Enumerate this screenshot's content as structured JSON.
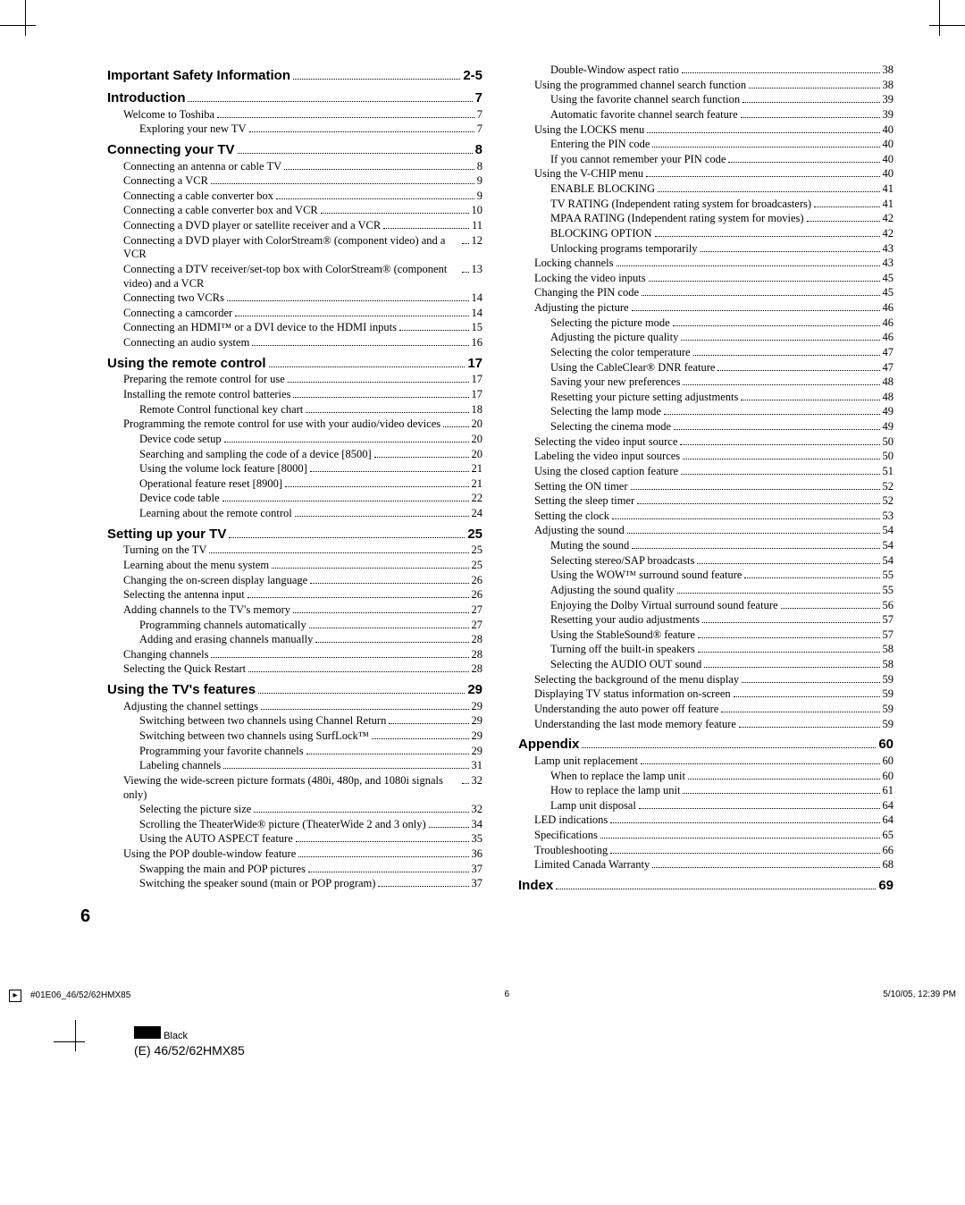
{
  "meta": {
    "page_number_display": "6",
    "job_code": "#01E06_46/52/62HMX85",
    "sheet_number": "6",
    "timestamp": "5/10/05, 12:39 PM",
    "imposition_label": "(E) 46/52/62HMX85",
    "color_name": "Black"
  },
  "left_column": [
    {
      "level": "section",
      "label": "Important Safety Information",
      "page": "2-5"
    },
    {
      "level": "section",
      "label": "Introduction",
      "page": "7"
    },
    {
      "level": 1,
      "label": "Welcome to Toshiba",
      "page": "7"
    },
    {
      "level": 2,
      "label": "Exploring your new TV",
      "page": "7"
    },
    {
      "level": "section",
      "label": "Connecting your TV",
      "page": "8"
    },
    {
      "level": 1,
      "label": "Connecting an antenna or cable TV",
      "page": "8"
    },
    {
      "level": 1,
      "label": "Connecting a VCR",
      "page": "9"
    },
    {
      "level": 1,
      "label": "Connecting a cable converter box",
      "page": "9"
    },
    {
      "level": 1,
      "label": "Connecting a cable converter box and VCR",
      "page": "10"
    },
    {
      "level": 1,
      "label": "Connecting a DVD player or satellite receiver and a VCR",
      "page": "11"
    },
    {
      "level": 1,
      "label": "Connecting a DVD player with ColorStream® (component video) and a VCR",
      "page": "12"
    },
    {
      "level": 1,
      "label": "Connecting a DTV receiver/set-top box with ColorStream® (component video) and a VCR",
      "page": "13"
    },
    {
      "level": 1,
      "label": "Connecting two VCRs",
      "page": "14"
    },
    {
      "level": 1,
      "label": "Connecting a camcorder",
      "page": "14"
    },
    {
      "level": 1,
      "label": "Connecting an HDMI™ or a DVI device to the HDMI inputs",
      "page": "15"
    },
    {
      "level": 1,
      "label": "Connecting an audio system",
      "page": "16"
    },
    {
      "level": "section",
      "label": "Using the remote control",
      "page": "17"
    },
    {
      "level": 1,
      "label": "Preparing the remote control for use",
      "page": "17"
    },
    {
      "level": 1,
      "label": "Installing the remote control batteries",
      "page": "17"
    },
    {
      "level": 2,
      "label": "Remote Control functional key chart",
      "page": "18"
    },
    {
      "level": 1,
      "label": "Programming the remote control for use with your audio/video devices",
      "page": "20"
    },
    {
      "level": 2,
      "label": "Device code setup",
      "page": "20"
    },
    {
      "level": 2,
      "label": "Searching and sampling the code of a device [8500]",
      "page": "20"
    },
    {
      "level": 2,
      "label": "Using the volume lock feature [8000]",
      "page": "21"
    },
    {
      "level": 2,
      "label": "Operational feature reset [8900]",
      "page": "21"
    },
    {
      "level": 2,
      "label": "Device code table",
      "page": "22"
    },
    {
      "level": 2,
      "label": "Learning about the remote control",
      "page": "24"
    },
    {
      "level": "section",
      "label": "Setting up your TV",
      "page": "25"
    },
    {
      "level": 1,
      "label": "Turning on the TV",
      "page": "25"
    },
    {
      "level": 1,
      "label": "Learning about the menu system",
      "page": "25"
    },
    {
      "level": 1,
      "label": "Changing the on-screen display language",
      "page": "26"
    },
    {
      "level": 1,
      "label": "Selecting the antenna input",
      "page": "26"
    },
    {
      "level": 1,
      "label": "Adding channels to the TV's memory",
      "page": "27"
    },
    {
      "level": 2,
      "label": "Programming channels automatically",
      "page": "27"
    },
    {
      "level": 2,
      "label": "Adding and erasing channels manually",
      "page": "28"
    },
    {
      "level": 1,
      "label": "Changing channels",
      "page": "28"
    },
    {
      "level": 1,
      "label": "Selecting the Quick Restart",
      "page": "28"
    },
    {
      "level": "section",
      "label": "Using the TV's features",
      "page": "29"
    },
    {
      "level": 1,
      "label": "Adjusting the channel settings",
      "page": "29"
    },
    {
      "level": 2,
      "label": "Switching between two channels using Channel Return",
      "page": "29"
    },
    {
      "level": 2,
      "label": "Switching between two channels using SurfLock™",
      "page": "29"
    },
    {
      "level": 2,
      "label": "Programming your favorite channels",
      "page": "29"
    },
    {
      "level": 2,
      "label": "Labeling channels",
      "page": "31"
    },
    {
      "level": 1,
      "label": "Viewing the wide-screen picture formats (480i, 480p, and 1080i signals only)",
      "page": "32"
    },
    {
      "level": 2,
      "label": "Selecting the picture size",
      "page": "32"
    },
    {
      "level": 2,
      "label": "Scrolling the TheaterWide® picture (TheaterWide 2 and 3 only)",
      "page": "34"
    },
    {
      "level": 2,
      "label": "Using the AUTO ASPECT feature",
      "page": "35"
    },
    {
      "level": 1,
      "label": "Using the POP double-window feature",
      "page": "36"
    },
    {
      "level": 2,
      "label": "Swapping the main and POP pictures",
      "page": "37"
    },
    {
      "level": 2,
      "label": "Switching the speaker sound (main or POP program)",
      "page": "37"
    }
  ],
  "right_column": [
    {
      "level": 2,
      "label": "Double-Window aspect ratio",
      "page": "38"
    },
    {
      "level": 1,
      "label": "Using the programmed channel search function",
      "page": "38"
    },
    {
      "level": 2,
      "label": "Using the favorite channel search function",
      "page": "39"
    },
    {
      "level": 2,
      "label": "Automatic favorite channel search feature",
      "page": "39"
    },
    {
      "level": 1,
      "label": "Using the LOCKS menu",
      "page": "40"
    },
    {
      "level": 2,
      "label": "Entering the PIN code",
      "page": "40"
    },
    {
      "level": 2,
      "label": "If you cannot remember your PIN code",
      "page": "40"
    },
    {
      "level": 1,
      "label": "Using the V-CHIP menu",
      "page": "40"
    },
    {
      "level": 2,
      "label": "ENABLE BLOCKING",
      "page": "41"
    },
    {
      "level": 2,
      "label": "TV RATING (Independent rating system for broadcasters)",
      "page": "41"
    },
    {
      "level": 2,
      "label": "MPAA RATING (Independent rating system for movies)",
      "page": "42"
    },
    {
      "level": 2,
      "label": "BLOCKING OPTION",
      "page": "42"
    },
    {
      "level": 2,
      "label": "Unlocking programs temporarily",
      "page": "43"
    },
    {
      "level": 1,
      "label": "Locking channels",
      "page": "43"
    },
    {
      "level": 1,
      "label": "Locking the video inputs",
      "page": "45"
    },
    {
      "level": 1,
      "label": "Changing the PIN code",
      "page": "45"
    },
    {
      "level": 1,
      "label": "Adjusting the picture",
      "page": "46"
    },
    {
      "level": 2,
      "label": "Selecting the picture mode",
      "page": "46"
    },
    {
      "level": 2,
      "label": "Adjusting the picture quality",
      "page": "46"
    },
    {
      "level": 2,
      "label": "Selecting the color temperature",
      "page": "47"
    },
    {
      "level": 2,
      "label": "Using the CableClear® DNR feature",
      "page": "47"
    },
    {
      "level": 2,
      "label": "Saving your new preferences",
      "page": "48"
    },
    {
      "level": 2,
      "label": "Resetting your picture setting adjustments",
      "page": "48"
    },
    {
      "level": 2,
      "label": "Selecting the lamp mode",
      "page": "49"
    },
    {
      "level": 2,
      "label": "Selecting the cinema mode",
      "page": "49"
    },
    {
      "level": 1,
      "label": "Selecting the video input source",
      "page": "50"
    },
    {
      "level": 1,
      "label": "Labeling the video input sources",
      "page": "50"
    },
    {
      "level": 1,
      "label": "Using the closed caption feature",
      "page": "51"
    },
    {
      "level": 1,
      "label": "Setting the ON timer",
      "page": "52"
    },
    {
      "level": 1,
      "label": "Setting the sleep timer",
      "page": "52"
    },
    {
      "level": 1,
      "label": "Setting the clock",
      "page": "53"
    },
    {
      "level": 1,
      "label": "Adjusting the sound",
      "page": "54"
    },
    {
      "level": 2,
      "label": "Muting the sound",
      "page": "54"
    },
    {
      "level": 2,
      "label": "Selecting stereo/SAP broadcasts",
      "page": "54"
    },
    {
      "level": 2,
      "label": "Using the WOW™ surround sound feature",
      "page": "55"
    },
    {
      "level": 2,
      "label": "Adjusting the sound quality",
      "page": "55"
    },
    {
      "level": 2,
      "label": "Enjoying the Dolby Virtual surround sound feature",
      "page": "56"
    },
    {
      "level": 2,
      "label": "Resetting your audio adjustments",
      "page": "57"
    },
    {
      "level": 2,
      "label": "Using the StableSound® feature",
      "page": "57"
    },
    {
      "level": 2,
      "label": "Turning off the built-in speakers",
      "page": "58"
    },
    {
      "level": 2,
      "label": "Selecting the AUDIO OUT sound",
      "page": "58"
    },
    {
      "level": 1,
      "label": "Selecting the background of the menu display",
      "page": "59"
    },
    {
      "level": 1,
      "label": "Displaying TV status information on-screen",
      "page": "59"
    },
    {
      "level": 1,
      "label": "Understanding the auto power off feature",
      "page": "59"
    },
    {
      "level": 1,
      "label": "Understanding the last mode memory feature",
      "page": "59"
    },
    {
      "level": "section",
      "label": "Appendix",
      "page": "60"
    },
    {
      "level": 1,
      "label": "Lamp unit replacement",
      "page": "60"
    },
    {
      "level": 2,
      "label": "When to replace the lamp unit",
      "page": "60"
    },
    {
      "level": 2,
      "label": "How to replace the lamp unit",
      "page": "61"
    },
    {
      "level": 2,
      "label": "Lamp unit disposal",
      "page": "64"
    },
    {
      "level": 1,
      "label": "LED indications",
      "page": "64"
    },
    {
      "level": 1,
      "label": "Specifications",
      "page": "65"
    },
    {
      "level": 1,
      "label": "Troubleshooting",
      "page": "66"
    },
    {
      "level": 1,
      "label": "Limited Canada Warranty",
      "page": "68"
    },
    {
      "level": "section",
      "label": "Index",
      "page": "69"
    }
  ]
}
